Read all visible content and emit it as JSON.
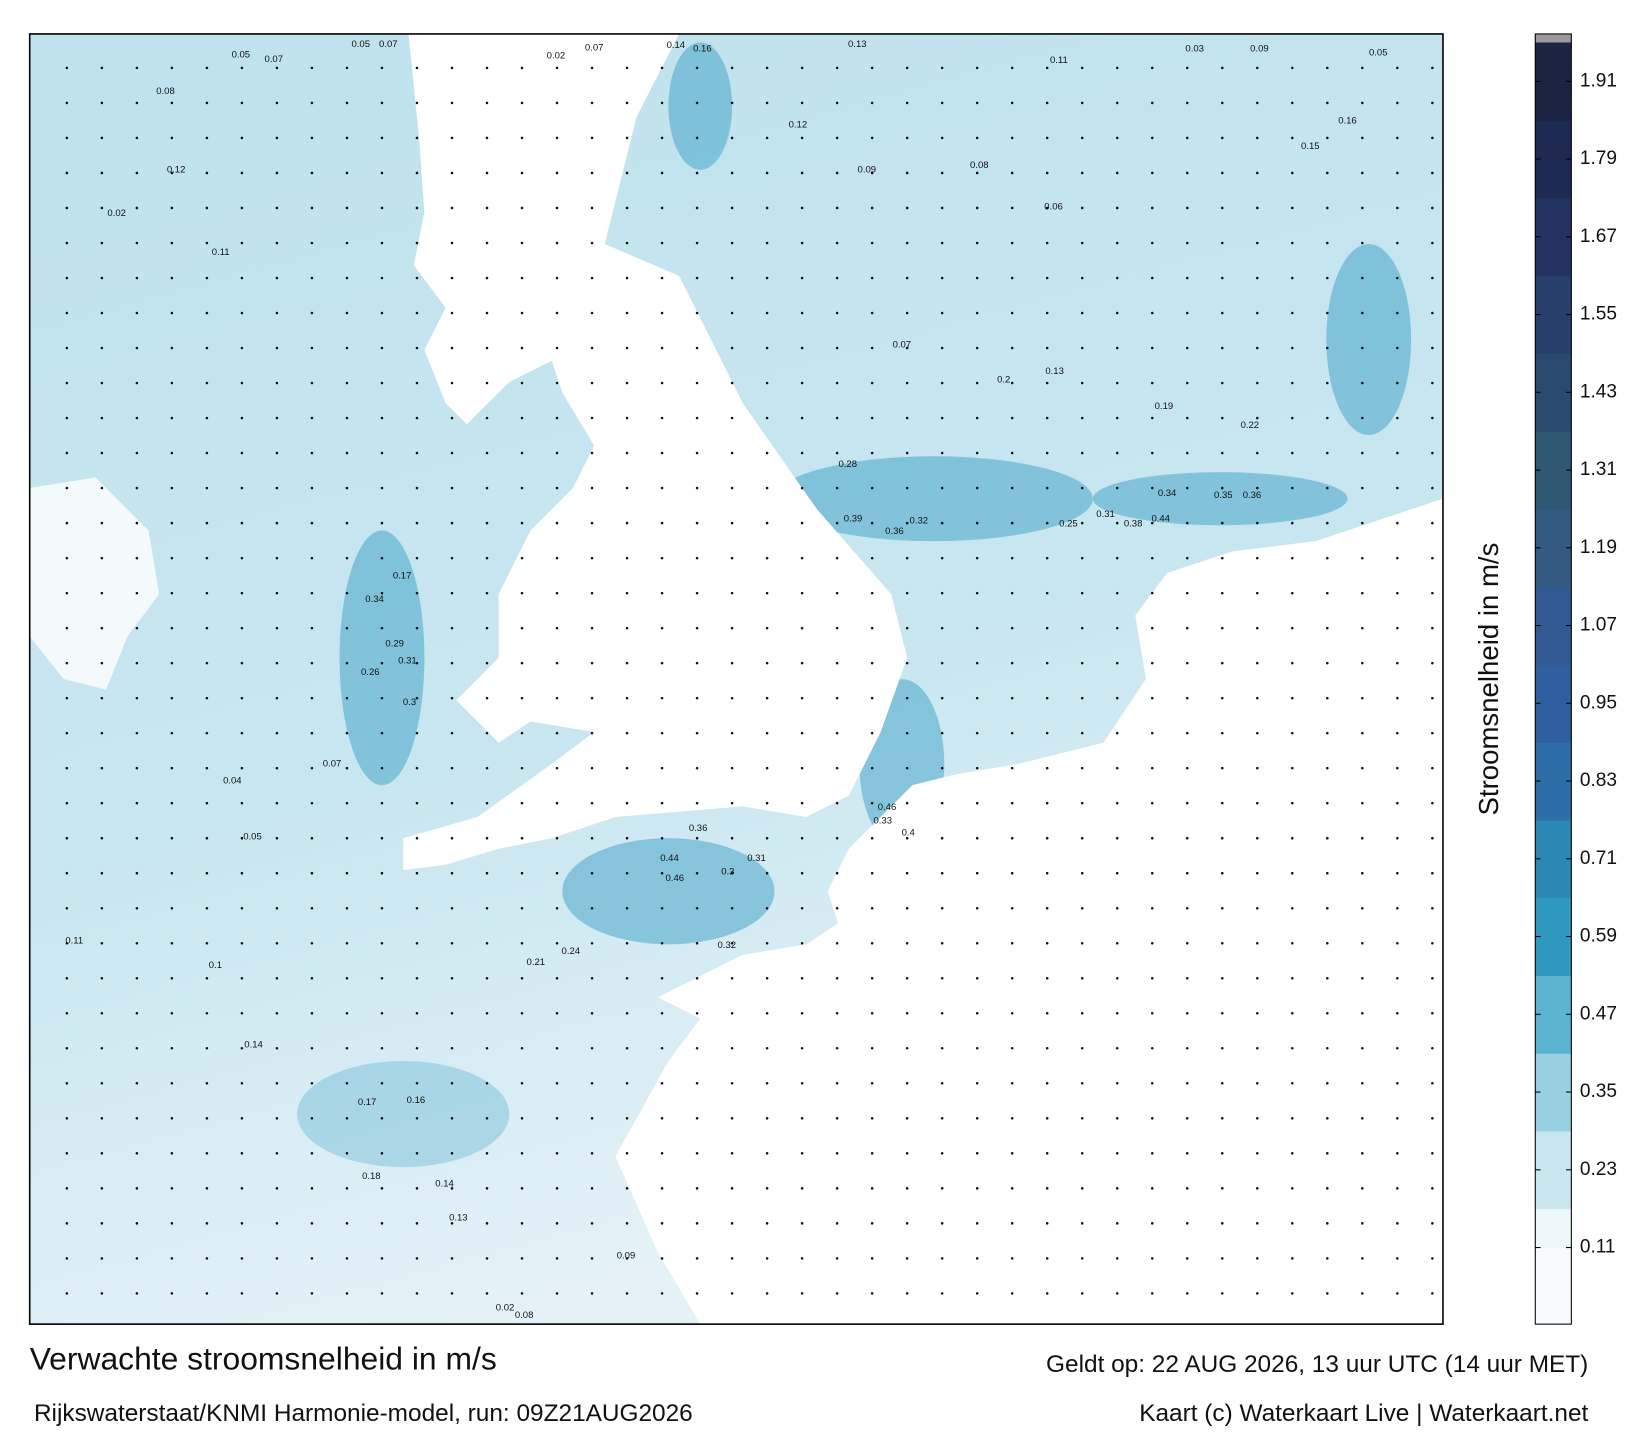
{
  "map": {
    "labels": [
      0.05,
      0.07,
      0.05,
      0.07,
      0.02,
      0.07,
      0.14,
      0.16,
      0.13,
      0.11,
      0.03,
      0.09,
      0.05,
      0.08,
      0.12,
      0.02,
      0.11,
      0.12,
      0.09,
      0.08,
      0.06,
      0.16,
      0.15,
      0.07,
      0.2,
      0.13,
      0.19,
      0.22,
      0.28,
      0.39,
      0.36,
      0.32,
      0.25,
      0.31,
      0.38,
      0.44,
      0.34,
      0.35,
      0.36,
      0.17,
      0.34,
      0.29,
      0.31,
      0.26,
      0.3,
      0.46,
      0.33,
      0.4,
      0.46,
      0.44,
      0.31,
      0.3,
      0.36,
      0.32,
      0.24,
      0.21,
      0.17,
      0.16,
      0.18,
      0.14,
      0.13,
      0.09,
      0.02,
      0.08,
      0.11,
      0.1,
      0.14,
      0.04,
      0.07,
      0.05
    ]
  },
  "colorbar": {
    "title": "Stroomsnelheid in m/s",
    "lim": [
      0,
      1.97
    ],
    "ticks": [
      0.11,
      0.23,
      0.35,
      0.47,
      0.59,
      0.71,
      0.83,
      0.95,
      1.07,
      1.19,
      1.31,
      1.43,
      1.55,
      1.67,
      1.79,
      1.91
    ],
    "colors": [
      "#eef7fa",
      "#c9e6ef",
      "#97d0e1",
      "#5bb4d1",
      "#2e98bf",
      "#2b87b4",
      "#2d6ea8",
      "#2f5fa0",
      "#325a92",
      "#345a82",
      "#305872",
      "#2b4a72",
      "#283e6b",
      "#243462",
      "#1f2a52",
      "#1b2442"
    ]
  },
  "footer": {
    "title": "Verwachte stroomsnelheid in m/s",
    "model": "Rijkswaterstaat/KNMI Harmonie-model, run: 09Z21AUG2026",
    "valid": "Geldt op: 22 AUG 2026, 13 uur UTC (14 uur MET)",
    "credit": "Kaart (c) Waterkaart Live | Waterkaart.net"
  }
}
